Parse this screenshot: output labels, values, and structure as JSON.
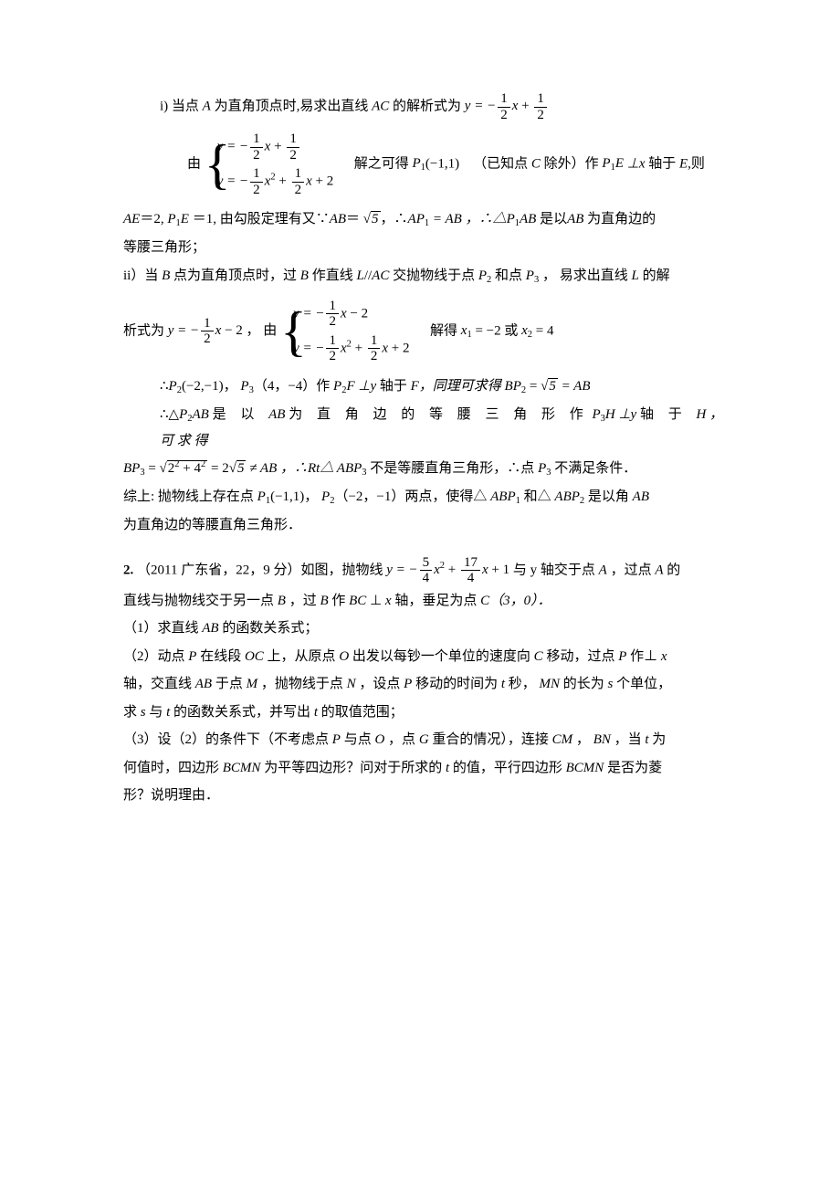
{
  "line_i_part1": "i) 当点",
  "A": "A",
  "line_i_part2": "为直角顶点时,易求出直线",
  "AC": "AC",
  "line_i_part3": "的解析式为",
  "eq_y_line": "y = −",
  "plus": " + ",
  "x": "x",
  "half_num": "1",
  "half_den": "2",
  "you": "由",
  "sys1_label": " ",
  "sys1_row1_y": "y = −",
  "sys1_row2_y": "y = −",
  "x2": "x",
  "sq": "2",
  "plus2": " + 2",
  "solve1_p1": "解之可得",
  "P1": "P",
  "P1coord": "(−1,1)",
  "solve1_p2": "（已知点",
  "C": "C",
  "solve1_p3": "除外）作",
  "P1E": "P",
  "E": "E",
  "perp": " ⊥",
  "xaxis": "x",
  "solve1_p4": " 轴于",
  "Ecomma": "E,",
  "ze": "则",
  "ae_line1": "AE",
  "eq2": "＝2,  ",
  "PE": "P",
  "eq1": " ＝1,  由勾股定理有又∵",
  "AB": "AB",
  "eq_sqrt5": "＝ ",
  "sqrt5": "5",
  "AP1eqAB": "，∴",
  "AP": "AP",
  "eqAB": " = AB ，∴△",
  "PAB": "P",
  "isAB": "AB",
  "isright": " 是以",
  "asright": " 为直角边的",
  "isoceles": "等腰三角形；",
  "line_ii_p1": "ii）当",
  "B": "B",
  "line_ii_p2": "点为直角顶点时，过",
  "line_ii_p3": "作直线",
  "L": "L",
  "parallel": "//",
  "line_ii_p4": "交抛物线于点",
  "P2": "P",
  "and": "和点",
  "P3": "P",
  "line_ii_p5": "， 易求出直线",
  "line_ii_p6": "的解",
  "xishi": "析式为",
  "y_eq_line2": "y = −",
  "minus2": " − 2 ，  由",
  "sys2_row1": "y = −",
  "sys2_minus2": " − 2",
  "solve_get": "解得",
  "x1": "x",
  "eq_m2": " = −2",
  "or": " 或",
  "eq_4": " = 4",
  "therefore": "∴",
  "P2coord": "(−2,−1)，",
  "P3coord": "（4，−4）作",
  "F": "F",
  "perpy": " ⊥y",
  "yaxis_at": " 轴于",
  "Fcomma": "F，同理可求得",
  "BP": "BP",
  "eq_sqrt5_2": " = ",
  "eqAB2": " = AB",
  "tri_p2ab_p1": "∴△",
  "tri_p2ab_p2": " 是 以 ",
  "tri_p2ab_p3": " 为 直 角 边 的 等 腰 三 角 形 作",
  "H": "H",
  "perpy2": " ⊥y",
  "yaxis_at2": " 轴 于 ",
  "Hcomma": "H ，  可 求 得",
  "BP3_eq": "BP",
  "sqrt_expr": "2",
  "sqrt_expr2": " + 4",
  "eq_2sqrt5": " = 2",
  "neq_AB": " ≠ AB ，∴Rt△ ABP",
  "not_iso": "不是等腰直角三角形，∴点",
  "not_satisfy": "不满足条件．",
  "summary_p1": "综上: 抛物线上存在点",
  "summary_p1coord": "(−1,1)，",
  "summary_p2coord": "（−2，−1）两点，使得△",
  "ABP1": " ABP",
  "and2": "和△",
  "ABP2": " ABP",
  "summary_end": "  是以角",
  "summary_end2": "为直角边的等腰直角三角形．",
  "q2_num": "2.",
  "q2_p1": "（2011 广东省，22，9 分）如图，抛物线",
  "y_eq": "y = −",
  "f54n": "5",
  "f54d": "4",
  "f174n": "17",
  "f174d": "4",
  "plus1": " + 1",
  "q2_p2": "与 y 轴交于点",
  "q2_p3": "，过点",
  "q2_p4": "的",
  "q2_line2": "直线与抛物线交于另一点",
  "q2_line2b": "，过",
  "q2_line2c": "作",
  "BC": "BC",
  "q2_line2d": "⊥",
  "q2_line2e": "轴，垂足为点",
  "C30": "C（3，0）．",
  "q2_sub1": "（1）求直线",
  "q2_sub1b": "的函数关系式；",
  "q2_sub2_p1": "（2）动点",
  "P": "P",
  "q2_sub2_p2": "在线段",
  "OC": "OC",
  "q2_sub2_p3": "上，从原点",
  "O": "O",
  "q2_sub2_p4": "出发以每钞一个单位的速度向",
  "q2_sub2_p5": "移动，过点",
  "q2_sub2_p6": "作⊥",
  "q2_sub2_line2a": "轴，交直线",
  "q2_sub2_line2b": "于点",
  "M": "M",
  "q2_sub2_line2c": "，抛物线于点",
  "N": "N",
  "q2_sub2_line2d": "，设点",
  "q2_sub2_line2e": "移动的时间为",
  "t": "t",
  "q2_sub2_line2f": "秒，",
  "MN": "MN",
  "q2_sub2_line2g": "的长为",
  "s": "s",
  "q2_sub2_line2h": "个单位，",
  "q2_sub2_line3a": "求",
  "q2_sub2_line3b": "与",
  "q2_sub2_line3c": "的函数关系式，并写出",
  "q2_sub2_line3d": "的取值范围；",
  "q2_sub3_p1": "（3）设（2）的条件下（不考虑点",
  "q2_sub3_p2": "与点",
  "q2_sub3_p3": "，点",
  "G": "G",
  "q2_sub3_p4": "重合的情况），连接",
  "CM": "CM",
  "q2_sub3_p5": "，",
  "BN": "BN",
  "q2_sub3_p6": "，当",
  "q2_sub3_p7": "为",
  "q2_sub3_line2a": "何值时，四边形",
  "BCMN": "BCMN",
  "q2_sub3_line2b": "为平等四边形？问对于所求的",
  "q2_sub3_line2c": "的值，平行四边形",
  "q2_sub3_line2d": "是否为菱",
  "q2_sub3_line3": "形？说明理由．"
}
